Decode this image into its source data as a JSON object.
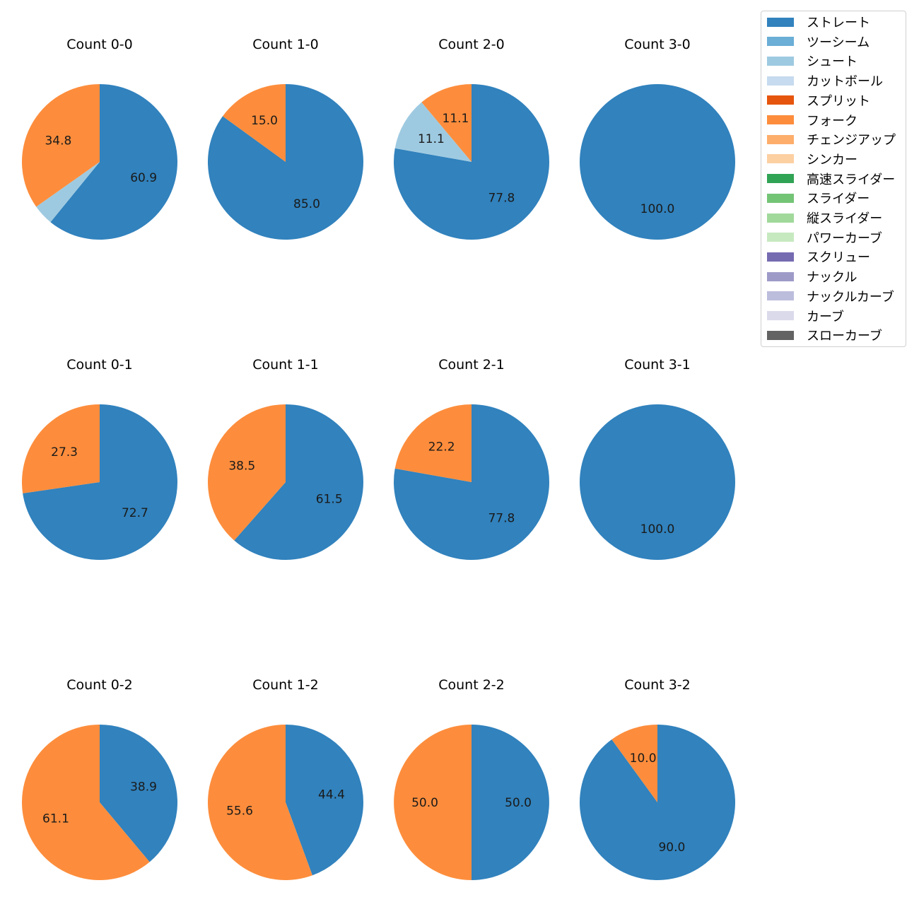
{
  "colors": {
    "ストレート": "#3182bd",
    "ツーシーム": "#6baed6",
    "シュート": "#9ecae1",
    "カットボール": "#c6dbef",
    "スプリット": "#e6550d",
    "フォーク": "#fd8d3c",
    "チェンジアップ": "#fdae6b",
    "シンカー": "#fdd0a2",
    "高速スライダー": "#31a354",
    "スライダー": "#74c476",
    "縦スライダー": "#a1d99b",
    "パワーカーブ": "#c7e9c0",
    "スクリュー": "#756bb1",
    "ナックル": "#9e9ac8",
    "ナックルカーブ": "#bcbddc",
    "カーブ": "#dadaeb",
    "スローカーブ": "#636363"
  },
  "legend": {
    "items": [
      "ストレート",
      "ツーシーム",
      "シュート",
      "カットボール",
      "スプリット",
      "フォーク",
      "チェンジアップ",
      "シンカー",
      "高速スライダー",
      "スライダー",
      "縦スライダー",
      "パワーカーブ",
      "スクリュー",
      "ナックル",
      "ナックルカーブ",
      "カーブ",
      "スローカーブ"
    ]
  },
  "chart_data": [
    {
      "type": "pie",
      "title": "Count 0-0",
      "labels": [
        "ストレート",
        "シュート",
        "フォーク"
      ],
      "values": [
        60.9,
        4.3,
        34.8
      ],
      "data_labels": [
        "60.9",
        "",
        "34.8"
      ]
    },
    {
      "type": "pie",
      "title": "Count 1-0",
      "labels": [
        "ストレート",
        "フォーク"
      ],
      "values": [
        85.0,
        15.0
      ],
      "data_labels": [
        "85.0",
        "15.0"
      ]
    },
    {
      "type": "pie",
      "title": "Count 2-0",
      "labels": [
        "ストレート",
        "シュート",
        "フォーク"
      ],
      "values": [
        77.8,
        11.1,
        11.1
      ],
      "data_labels": [
        "77.8",
        "11.1",
        "11.1"
      ]
    },
    {
      "type": "pie",
      "title": "Count 3-0",
      "labels": [
        "ストレート"
      ],
      "values": [
        100.0
      ],
      "data_labels": [
        "100.0"
      ]
    },
    {
      "type": "pie",
      "title": "Count 0-1",
      "labels": [
        "ストレート",
        "フォーク"
      ],
      "values": [
        72.7,
        27.3
      ],
      "data_labels": [
        "72.7",
        "27.3"
      ]
    },
    {
      "type": "pie",
      "title": "Count 1-1",
      "labels": [
        "ストレート",
        "フォーク"
      ],
      "values": [
        61.5,
        38.5
      ],
      "data_labels": [
        "61.5",
        "38.5"
      ]
    },
    {
      "type": "pie",
      "title": "Count 2-1",
      "labels": [
        "ストレート",
        "フォーク"
      ],
      "values": [
        77.8,
        22.2
      ],
      "data_labels": [
        "77.8",
        "22.2"
      ]
    },
    {
      "type": "pie",
      "title": "Count 3-1",
      "labels": [
        "ストレート"
      ],
      "values": [
        100.0
      ],
      "data_labels": [
        "100.0"
      ]
    },
    {
      "type": "pie",
      "title": "Count 0-2",
      "labels": [
        "ストレート",
        "フォーク"
      ],
      "values": [
        38.9,
        61.1
      ],
      "data_labels": [
        "38.9",
        "61.1"
      ]
    },
    {
      "type": "pie",
      "title": "Count 1-2",
      "labels": [
        "ストレート",
        "フォーク"
      ],
      "values": [
        44.4,
        55.6
      ],
      "data_labels": [
        "44.4",
        "55.6"
      ]
    },
    {
      "type": "pie",
      "title": "Count 2-2",
      "labels": [
        "ストレート",
        "フォーク"
      ],
      "values": [
        50.0,
        50.0
      ],
      "data_labels": [
        "50.0",
        "50.0"
      ]
    },
    {
      "type": "pie",
      "title": "Count 3-2",
      "labels": [
        "ストレート",
        "フォーク"
      ],
      "values": [
        90.0,
        10.0
      ],
      "data_labels": [
        "90.0",
        "10.0"
      ]
    }
  ]
}
